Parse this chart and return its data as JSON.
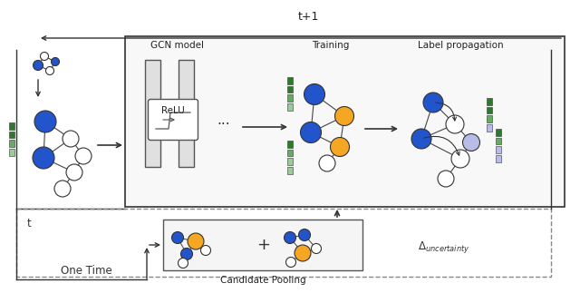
{
  "bg_color": "#ffffff",
  "node_blue": "#2255cc",
  "node_orange": "#f5a623",
  "node_white": "#ffffff",
  "node_lavender": "#b8bce8",
  "edge_color": "#444444",
  "green_dark": "#2d7a2d",
  "green_light": "#99cc99",
  "green_mid": "#66aa66",
  "dashed_color": "#888888",
  "box_fill": "#f8f8f8",
  "layer_fill": "#e0e0e0",
  "t1_label": "t+1",
  "t_label": "t",
  "gcn_label": "GCN model",
  "relu_label": "ReLU",
  "training_label": "Training",
  "lp_label": "Label propagation",
  "cp_label": "Candidate Pooling",
  "ot_label": "One Time"
}
